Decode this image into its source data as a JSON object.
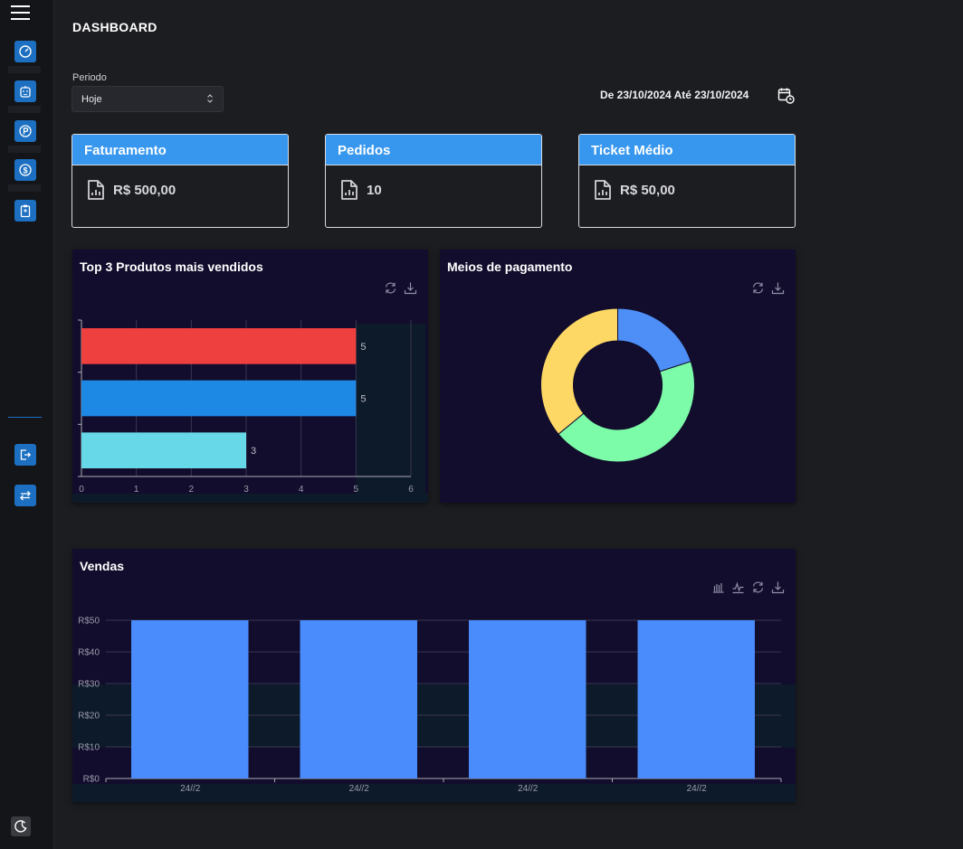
{
  "header": {
    "title": "DASHBOARD"
  },
  "filters": {
    "period_label": "Periodo",
    "period_value": "Hoje",
    "date_range": "De 23/10/2024 Até 23/10/2024"
  },
  "stats": [
    {
      "title": "Faturamento",
      "value": "R$ 500,00"
    },
    {
      "title": "Pedidos",
      "value": "10"
    },
    {
      "title": "Ticket Médio",
      "value": "R$ 50,00"
    }
  ],
  "sidebar": {
    "icons": [
      "gauge-icon",
      "robot-icon",
      "parking-icon",
      "dollar-icon",
      "clipboard-icon",
      "logout-icon",
      "swap-icon",
      "moon-icon"
    ]
  },
  "top_products": {
    "title": "Top 3 Produtos mais vendidos",
    "chart_data": {
      "type": "bar",
      "orientation": "horizontal",
      "values": [
        5,
        5,
        3
      ],
      "colors": [
        "#ef4040",
        "#1e88e5",
        "#67d8e8"
      ],
      "xlim": [
        0,
        6
      ],
      "xticks": [
        "0",
        "1",
        "2",
        "3",
        "4",
        "5",
        "6"
      ]
    }
  },
  "payments": {
    "title": "Meios de pagamento",
    "chart_data": {
      "type": "pie",
      "donut": true,
      "values": [
        20,
        44,
        36
      ],
      "colors": [
        "#4d8ef7",
        "#7cfba8",
        "#fdd865"
      ]
    }
  },
  "sales": {
    "title": "Vendas",
    "chart_data": {
      "type": "bar",
      "categories": [
        "24//2",
        "24//2",
        "24//2",
        "24//2"
      ],
      "values": [
        50,
        50,
        50,
        50
      ],
      "ylim": [
        0,
        50
      ],
      "yticks": [
        "R$0",
        "R$10",
        "R$20",
        "R$30",
        "R$40",
        "R$50"
      ],
      "color": "#4a8cfc"
    }
  }
}
